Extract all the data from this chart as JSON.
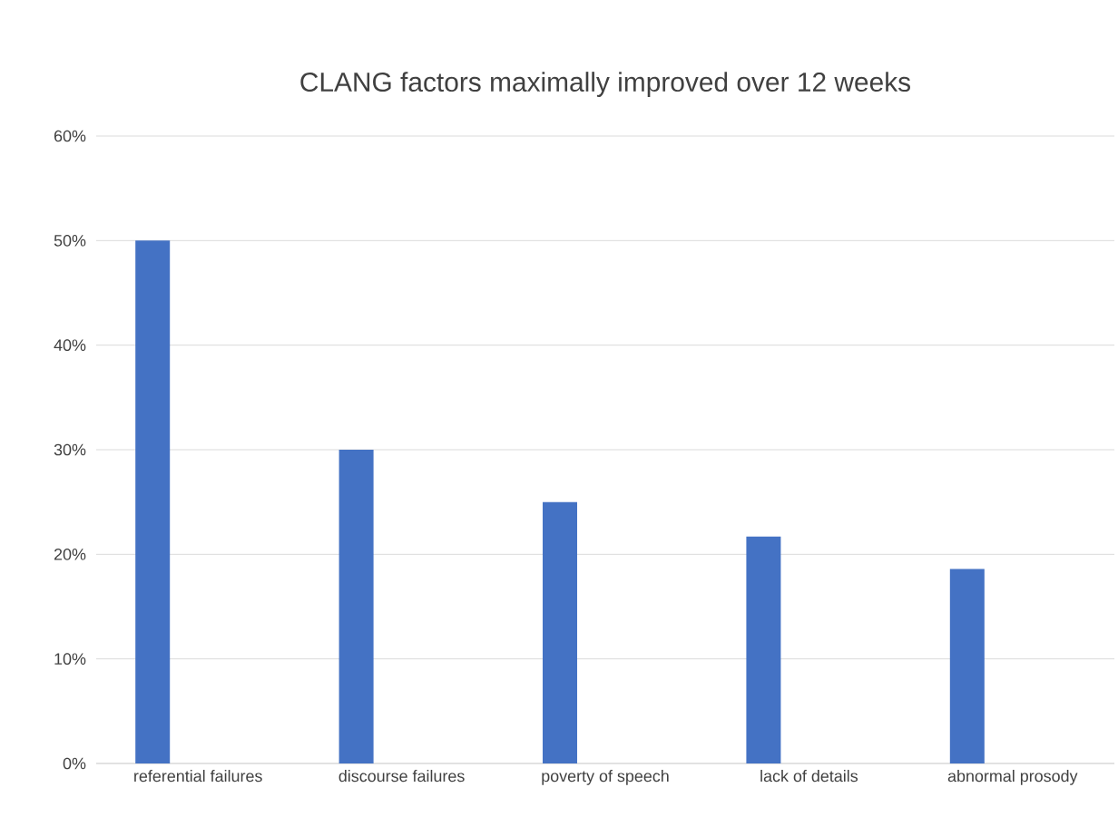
{
  "chart_data": {
    "type": "bar",
    "title": "CLANG factors maximally improved over 12 weeks",
    "categories": [
      "referential failures",
      "discourse failures",
      "poverty of speech",
      "lack of details",
      "abnormal prosody"
    ],
    "values": [
      50,
      30,
      25,
      21.7,
      18.6
    ],
    "color": "#4472c4",
    "ylim": [
      0,
      60
    ],
    "yticks": [
      {
        "value": 0,
        "label": "0%"
      },
      {
        "value": 10,
        "label": "10%"
      },
      {
        "value": 20,
        "label": "20%"
      },
      {
        "value": 30,
        "label": "30%"
      },
      {
        "value": 40,
        "label": "40%"
      },
      {
        "value": 50,
        "label": "50%"
      },
      {
        "value": 60,
        "label": "60%"
      }
    ],
    "grid": "y"
  }
}
